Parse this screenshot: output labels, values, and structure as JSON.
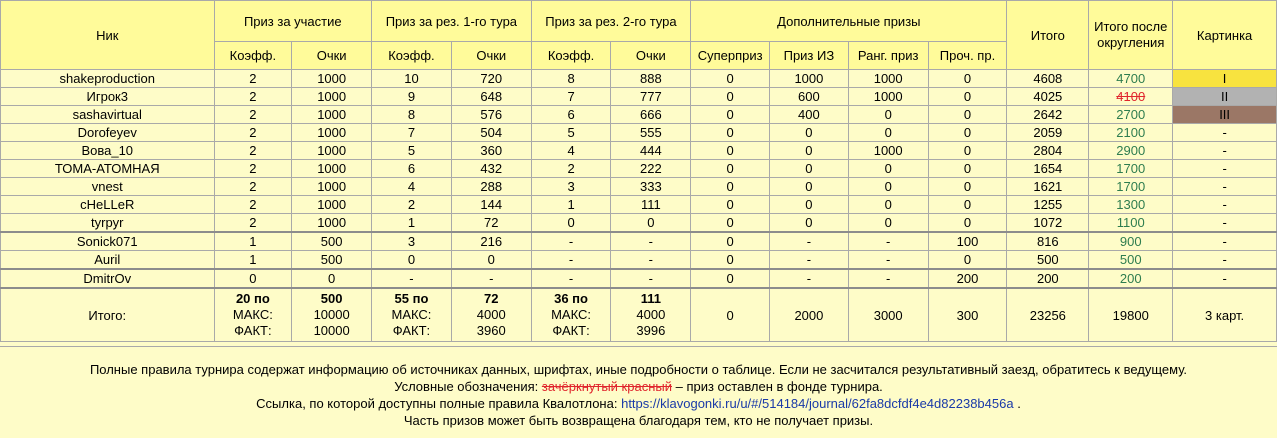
{
  "headers": {
    "nick": "Ник",
    "participation": "Приз за участие",
    "round1": "Приз за рез. 1-го тура",
    "round2": "Приз за рез. 2-го тура",
    "extra": "Дополнительные призы",
    "total": "Итого",
    "total_rounded": "Итого после округления",
    "picture": "Картинка",
    "coef": "Коэфф.",
    "points": "Очки",
    "superprize": "Суперприз",
    "prize_iz": "Приз ИЗ",
    "rank_prize": "Ранг. приз",
    "other_prize": "Проч. пр."
  },
  "rows": [
    {
      "nick": "shakeproduction",
      "pc": "2",
      "pp": "1000",
      "r1c": "10",
      "r1p": "720",
      "r2c": "8",
      "r2p": "888",
      "sp": "0",
      "iz": "1000",
      "rank": "1000",
      "other": "0",
      "total": "4608",
      "rounded": "4700",
      "pic": "I",
      "rounded_style": "green",
      "pic_style": "gold"
    },
    {
      "nick": "Игрок3",
      "pc": "2",
      "pp": "1000",
      "r1c": "9",
      "r1p": "648",
      "r2c": "7",
      "r2p": "777",
      "sp": "0",
      "iz": "600",
      "rank": "1000",
      "other": "0",
      "total": "4025",
      "rounded": "4100",
      "pic": "II",
      "rounded_style": "struck",
      "pic_style": "silver"
    },
    {
      "nick": "sashavirtual",
      "pc": "2",
      "pp": "1000",
      "r1c": "8",
      "r1p": "576",
      "r2c": "6",
      "r2p": "666",
      "sp": "0",
      "iz": "400",
      "rank": "0",
      "other": "0",
      "total": "2642",
      "rounded": "2700",
      "pic": "III",
      "rounded_style": "green",
      "pic_style": "bronze"
    },
    {
      "nick": "Dorofeyev",
      "pc": "2",
      "pp": "1000",
      "r1c": "7",
      "r1p": "504",
      "r2c": "5",
      "r2p": "555",
      "sp": "0",
      "iz": "0",
      "rank": "0",
      "other": "0",
      "total": "2059",
      "rounded": "2100",
      "pic": "-",
      "rounded_style": "green",
      "pic_style": ""
    },
    {
      "nick": "Вова_10",
      "pc": "2",
      "pp": "1000",
      "r1c": "5",
      "r1p": "360",
      "r2c": "4",
      "r2p": "444",
      "sp": "0",
      "iz": "0",
      "rank": "1000",
      "other": "0",
      "total": "2804",
      "rounded": "2900",
      "pic": "-",
      "rounded_style": "green",
      "pic_style": ""
    },
    {
      "nick": "ТОМА-АТОМНАЯ",
      "pc": "2",
      "pp": "1000",
      "r1c": "6",
      "r1p": "432",
      "r2c": "2",
      "r2p": "222",
      "sp": "0",
      "iz": "0",
      "rank": "0",
      "other": "0",
      "total": "1654",
      "rounded": "1700",
      "pic": "-",
      "rounded_style": "green",
      "pic_style": ""
    },
    {
      "nick": "vnest",
      "pc": "2",
      "pp": "1000",
      "r1c": "4",
      "r1p": "288",
      "r2c": "3",
      "r2p": "333",
      "sp": "0",
      "iz": "0",
      "rank": "0",
      "other": "0",
      "total": "1621",
      "rounded": "1700",
      "pic": "-",
      "rounded_style": "green",
      "pic_style": ""
    },
    {
      "nick": "cHeLLeR",
      "pc": "2",
      "pp": "1000",
      "r1c": "2",
      "r1p": "144",
      "r2c": "1",
      "r2p": "111",
      "sp": "0",
      "iz": "0",
      "rank": "0",
      "other": "0",
      "total": "1255",
      "rounded": "1300",
      "pic": "-",
      "rounded_style": "green",
      "pic_style": ""
    },
    {
      "nick": "tyrpyr",
      "pc": "2",
      "pp": "1000",
      "r1c": "1",
      "r1p": "72",
      "r2c": "0",
      "r2p": "0",
      "sp": "0",
      "iz": "0",
      "rank": "0",
      "other": "0",
      "total": "1072",
      "rounded": "1100",
      "pic": "-",
      "rounded_style": "green",
      "pic_style": ""
    },
    {
      "nick": "Sonick071",
      "pc": "1",
      "pp": "500",
      "r1c": "3",
      "r1p": "216",
      "r2c": "-",
      "r2p": "-",
      "sp": "0",
      "iz": "-",
      "rank": "-",
      "other": "100",
      "total": "816",
      "rounded": "900",
      "pic": "-",
      "rounded_style": "green",
      "pic_style": "",
      "sep": true
    },
    {
      "nick": "Auril",
      "pc": "1",
      "pp": "500",
      "r1c": "0",
      "r1p": "0",
      "r2c": "-",
      "r2p": "-",
      "sp": "0",
      "iz": "-",
      "rank": "-",
      "other": "0",
      "total": "500",
      "rounded": "500",
      "pic": "-",
      "rounded_style": "green",
      "pic_style": ""
    },
    {
      "nick": "DmitrOv",
      "pc": "0",
      "pp": "0",
      "r1c": "-",
      "r1p": "-",
      "r2c": "-",
      "r2p": "-",
      "sp": "0",
      "iz": "-",
      "rank": "-",
      "other": "200",
      "total": "200",
      "rounded": "200",
      "pic": "-",
      "rounded_style": "green",
      "pic_style": "",
      "sep": true
    }
  ],
  "totals": {
    "label": "Итого:",
    "pc1": "20 по",
    "pp1": "500",
    "r1c1": "55 по",
    "r1p1": "72",
    "r2c1": "36 по",
    "r2p1": "111",
    "max_label": "МАКС:",
    "fact_label": "ФАКТ:",
    "pp_max": "10000",
    "pp_fact": "10000",
    "r1_max": "4000",
    "r1_fact": "3960",
    "r2_max": "4000",
    "r2_fact": "3996",
    "sp": "0",
    "iz": "2000",
    "rank": "3000",
    "other": "300",
    "total": "23256",
    "rounded": "19800",
    "pic": "3 карт."
  },
  "notes": {
    "line1": "Полные правила турнира содержат информацию об источниках данных, шрифтах, иные подробности о таблице. Если не засчитался результативный заезд, обратитесь к ведущему.",
    "legend_prefix": "Условные обозначения:",
    "legend_sample": "зачёркнутый красный",
    "legend_suffix": "– приз оставлен в фонде турнира.",
    "link_prefix": "Ссылка, по которой доступны полные правила Квалотлона:",
    "link_url": "https://klavogonki.ru/u/#/514184/journal/62fa8dcfdf4e4d82238b456a",
    "link_suffix": ".",
    "line4": "Часть призов может быть возвращена благодаря тем, кто не получает призы."
  },
  "colors": {
    "background": "#fefcc8",
    "header": "#fffb9a",
    "green_text": "#2e7d4f",
    "struck_text": "#e0262d",
    "gold": "#f8e33f",
    "silver": "#b2b2b2",
    "bronze": "#9b7766",
    "link": "#1a3aa8"
  }
}
